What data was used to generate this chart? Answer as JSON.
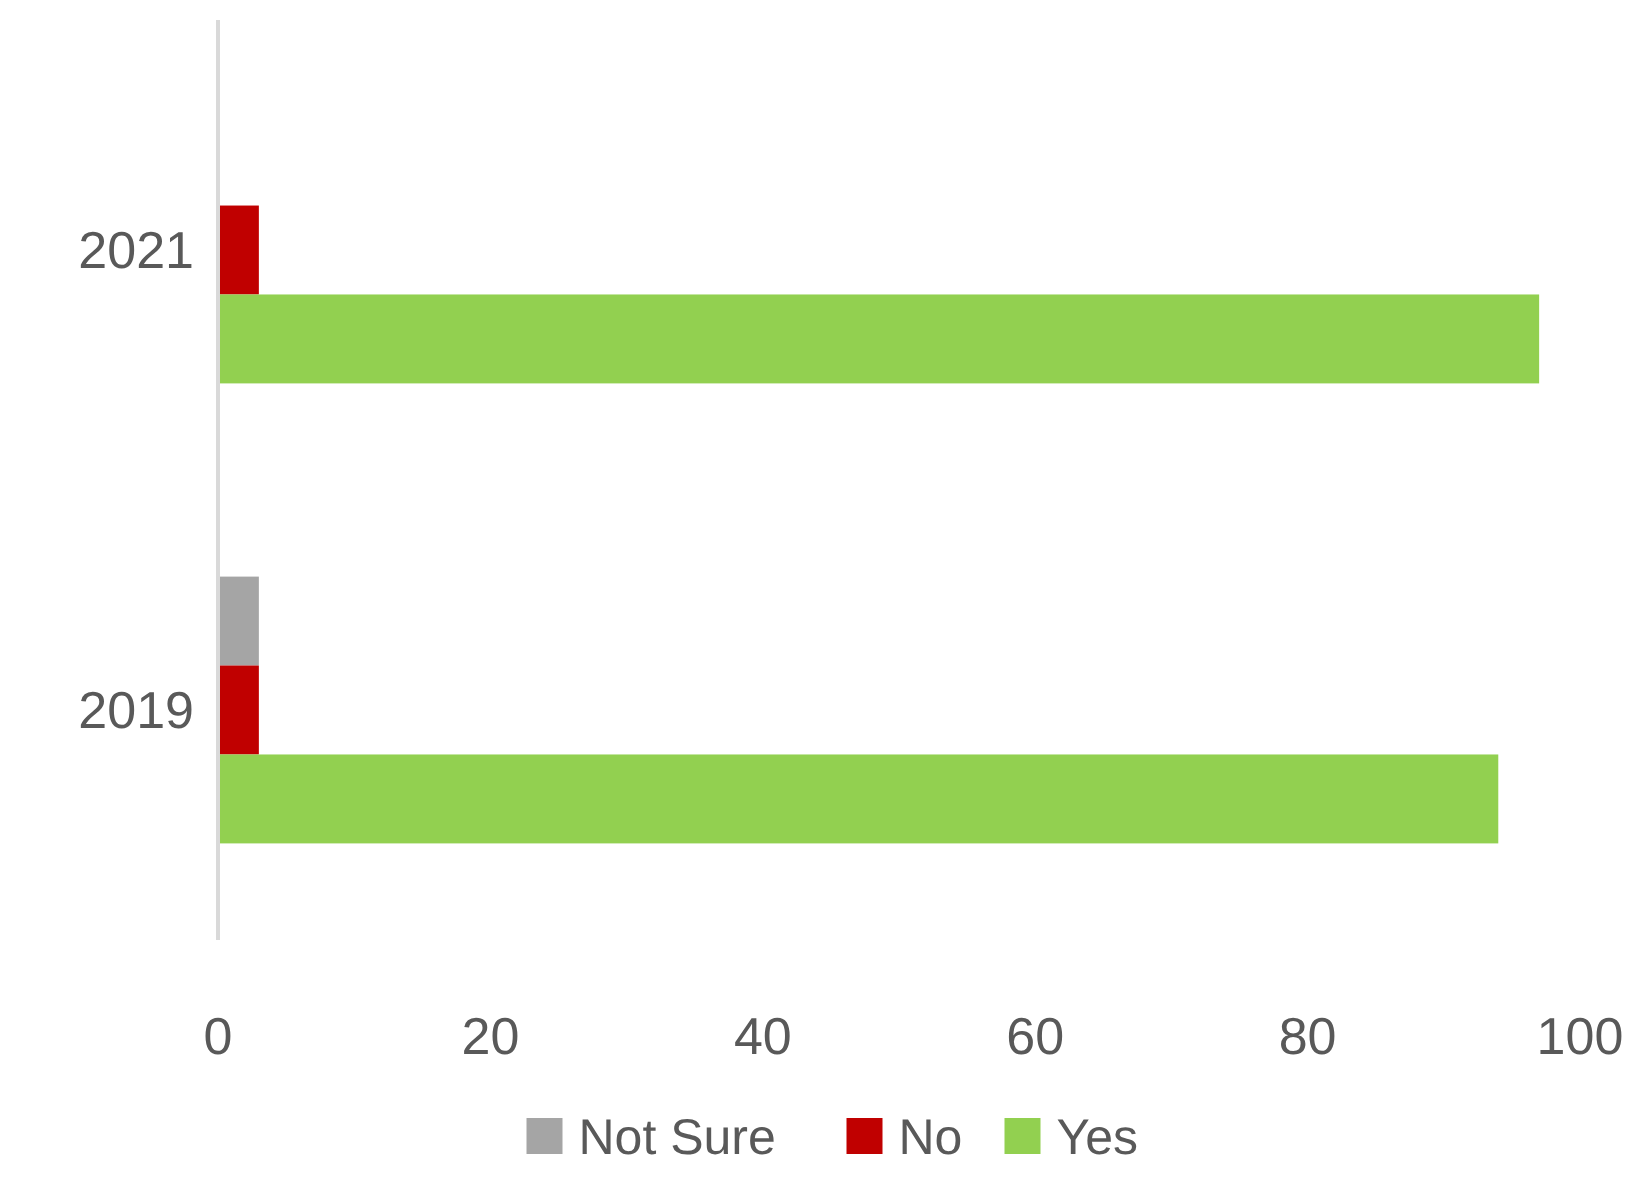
{
  "chart_data": {
    "type": "bar",
    "orientation": "horizontal",
    "categories": [
      "2021",
      "2019"
    ],
    "series": [
      {
        "name": "Not Sure",
        "color": "#a5a5a5",
        "values": [
          null,
          3
        ]
      },
      {
        "name": "No",
        "color": "#c00000",
        "values": [
          3,
          3
        ]
      },
      {
        "name": "Yes",
        "color": "#92d050",
        "values": [
          97,
          94
        ]
      }
    ],
    "xlim": [
      0,
      100
    ],
    "xticks": [
      0,
      20,
      40,
      60,
      80,
      100
    ],
    "grid": false,
    "legend": "bottom"
  }
}
